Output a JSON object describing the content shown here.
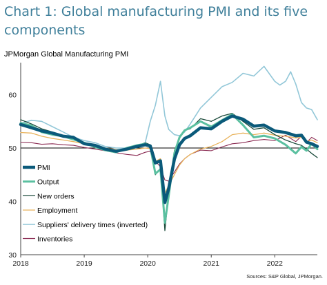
{
  "title": "Chart 1: Global manufacturing PMI and its five components",
  "subtitle": "JPMorgan Global Manufacturing PMI",
  "source": "Sources: S&P Global, JPMorgan.",
  "chart_data": {
    "type": "line",
    "xlim": [
      2018.0,
      2022.67
    ],
    "ylim": [
      30,
      66
    ],
    "y_ticks": [
      30,
      40,
      50,
      60
    ],
    "x_ticks": [
      {
        "value": 2018,
        "label": "2018"
      },
      {
        "value": 2019,
        "label": "2019"
      },
      {
        "value": 2020,
        "label": "2020"
      },
      {
        "value": 2021,
        "label": "2021"
      },
      {
        "value": 2022,
        "label": "2022"
      }
    ],
    "reference_line": 50,
    "grid": false,
    "legend_position": "bottom-left",
    "series": [
      {
        "name": "PMI",
        "color": "#0b5a7a",
        "width": 4.5,
        "points": [
          [
            2018.0,
            54.4
          ],
          [
            2018.17,
            53.8
          ],
          [
            2018.33,
            53.2
          ],
          [
            2018.5,
            52.8
          ],
          [
            2018.67,
            52.2
          ],
          [
            2018.83,
            52.0
          ],
          [
            2019.0,
            50.8
          ],
          [
            2019.17,
            50.5
          ],
          [
            2019.33,
            49.8
          ],
          [
            2019.5,
            49.4
          ],
          [
            2019.67,
            49.8
          ],
          [
            2019.83,
            50.3
          ],
          [
            2019.96,
            50.6
          ],
          [
            2020.04,
            50.4
          ],
          [
            2020.12,
            47.2
          ],
          [
            2020.2,
            47.6
          ],
          [
            2020.27,
            39.8
          ],
          [
            2020.33,
            42.4
          ],
          [
            2020.42,
            47.9
          ],
          [
            2020.5,
            50.6
          ],
          [
            2020.58,
            51.8
          ],
          [
            2020.67,
            52.3
          ],
          [
            2020.83,
            53.8
          ],
          [
            2021.0,
            53.6
          ],
          [
            2021.17,
            55.0
          ],
          [
            2021.33,
            56.0
          ],
          [
            2021.5,
            55.4
          ],
          [
            2021.67,
            54.1
          ],
          [
            2021.83,
            54.3
          ],
          [
            2022.0,
            53.2
          ],
          [
            2022.17,
            52.9
          ],
          [
            2022.33,
            52.3
          ],
          [
            2022.42,
            52.4
          ],
          [
            2022.5,
            51.1
          ],
          [
            2022.58,
            50.8
          ],
          [
            2022.67,
            50.3
          ]
        ]
      },
      {
        "name": "Output",
        "color": "#5bc0a0",
        "width": 3,
        "points": [
          [
            2018.0,
            54.7
          ],
          [
            2018.17,
            54.2
          ],
          [
            2018.33,
            53.0
          ],
          [
            2018.5,
            52.5
          ],
          [
            2018.67,
            52.2
          ],
          [
            2018.83,
            51.6
          ],
          [
            2019.0,
            51.0
          ],
          [
            2019.17,
            50.2
          ],
          [
            2019.33,
            49.6
          ],
          [
            2019.5,
            49.2
          ],
          [
            2019.67,
            50.0
          ],
          [
            2019.83,
            50.5
          ],
          [
            2019.96,
            50.8
          ],
          [
            2020.04,
            50.3
          ],
          [
            2020.12,
            45.2
          ],
          [
            2020.2,
            46.0
          ],
          [
            2020.27,
            36.0
          ],
          [
            2020.33,
            41.0
          ],
          [
            2020.42,
            49.0
          ],
          [
            2020.5,
            52.0
          ],
          [
            2020.58,
            53.3
          ],
          [
            2020.67,
            53.8
          ],
          [
            2020.83,
            55.0
          ],
          [
            2021.0,
            54.0
          ],
          [
            2021.17,
            55.2
          ],
          [
            2021.33,
            56.3
          ],
          [
            2021.5,
            54.3
          ],
          [
            2021.67,
            52.0
          ],
          [
            2021.83,
            52.3
          ],
          [
            2022.0,
            51.8
          ],
          [
            2022.17,
            50.6
          ],
          [
            2022.33,
            49.0
          ],
          [
            2022.42,
            50.2
          ],
          [
            2022.5,
            49.5
          ],
          [
            2022.58,
            50.8
          ],
          [
            2022.67,
            49.8
          ]
        ]
      },
      {
        "name": "New orders",
        "color": "#1a4a3a",
        "width": 1.3,
        "points": [
          [
            2018.0,
            55.3
          ],
          [
            2018.17,
            54.5
          ],
          [
            2018.33,
            53.6
          ],
          [
            2018.5,
            53.0
          ],
          [
            2018.67,
            52.3
          ],
          [
            2018.83,
            51.6
          ],
          [
            2019.0,
            50.9
          ],
          [
            2019.17,
            50.3
          ],
          [
            2019.33,
            49.7
          ],
          [
            2019.5,
            49.5
          ],
          [
            2019.67,
            50.0
          ],
          [
            2019.83,
            50.4
          ],
          [
            2019.96,
            51.0
          ],
          [
            2020.04,
            50.6
          ],
          [
            2020.12,
            45.0
          ],
          [
            2020.2,
            46.2
          ],
          [
            2020.27,
            34.5
          ],
          [
            2020.33,
            41.5
          ],
          [
            2020.42,
            49.5
          ],
          [
            2020.5,
            52.0
          ],
          [
            2020.58,
            53.3
          ],
          [
            2020.67,
            53.6
          ],
          [
            2020.83,
            55.5
          ],
          [
            2021.0,
            55.0
          ],
          [
            2021.17,
            56.0
          ],
          [
            2021.33,
            56.5
          ],
          [
            2021.5,
            55.0
          ],
          [
            2021.67,
            53.5
          ],
          [
            2021.83,
            53.8
          ],
          [
            2022.0,
            52.5
          ],
          [
            2022.17,
            51.5
          ],
          [
            2022.33,
            50.8
          ],
          [
            2022.42,
            50.5
          ],
          [
            2022.5,
            49.8
          ],
          [
            2022.58,
            49.0
          ],
          [
            2022.67,
            48.2
          ]
        ]
      },
      {
        "name": "Employment",
        "color": "#e8b25a",
        "width": 1.3,
        "points": [
          [
            2018.0,
            52.9
          ],
          [
            2018.17,
            52.8
          ],
          [
            2018.33,
            52.2
          ],
          [
            2018.5,
            51.8
          ],
          [
            2018.67,
            51.5
          ],
          [
            2018.83,
            51.2
          ],
          [
            2019.0,
            50.8
          ],
          [
            2019.17,
            50.5
          ],
          [
            2019.33,
            50.0
          ],
          [
            2019.5,
            49.7
          ],
          [
            2019.67,
            49.6
          ],
          [
            2019.83,
            49.8
          ],
          [
            2019.96,
            50.0
          ],
          [
            2020.04,
            49.9
          ],
          [
            2020.12,
            47.5
          ],
          [
            2020.2,
            48.0
          ],
          [
            2020.27,
            41.5
          ],
          [
            2020.33,
            43.0
          ],
          [
            2020.42,
            45.0
          ],
          [
            2020.5,
            46.8
          ],
          [
            2020.58,
            48.0
          ],
          [
            2020.67,
            48.8
          ],
          [
            2020.83,
            49.8
          ],
          [
            2021.0,
            50.3
          ],
          [
            2021.17,
            51.2
          ],
          [
            2021.33,
            52.5
          ],
          [
            2021.5,
            52.8
          ],
          [
            2021.67,
            52.5
          ],
          [
            2021.83,
            52.8
          ],
          [
            2022.0,
            52.4
          ],
          [
            2022.17,
            52.2
          ],
          [
            2022.33,
            51.9
          ],
          [
            2022.42,
            52.0
          ],
          [
            2022.5,
            51.2
          ],
          [
            2022.58,
            51.5
          ],
          [
            2022.67,
            51.0
          ]
        ]
      },
      {
        "name": "Suppliers' delivery times (inverted)",
        "color": "#92c7d8",
        "width": 1.6,
        "points": [
          [
            2018.0,
            54.6
          ],
          [
            2018.17,
            55.2
          ],
          [
            2018.33,
            55.0
          ],
          [
            2018.5,
            54.0
          ],
          [
            2018.67,
            53.0
          ],
          [
            2018.83,
            52.0
          ],
          [
            2019.0,
            51.4
          ],
          [
            2019.17,
            51.0
          ],
          [
            2019.33,
            50.3
          ],
          [
            2019.5,
            50.0
          ],
          [
            2019.67,
            50.0
          ],
          [
            2019.83,
            50.2
          ],
          [
            2019.96,
            51.0
          ],
          [
            2020.04,
            55.0
          ],
          [
            2020.12,
            58.0
          ],
          [
            2020.2,
            62.5
          ],
          [
            2020.27,
            56.0
          ],
          [
            2020.33,
            53.5
          ],
          [
            2020.42,
            52.5
          ],
          [
            2020.5,
            52.3
          ],
          [
            2020.58,
            53.0
          ],
          [
            2020.67,
            54.5
          ],
          [
            2020.83,
            57.5
          ],
          [
            2021.0,
            59.5
          ],
          [
            2021.17,
            61.5
          ],
          [
            2021.33,
            62.3
          ],
          [
            2021.5,
            64.0
          ],
          [
            2021.67,
            63.5
          ],
          [
            2021.83,
            65.3
          ],
          [
            2022.0,
            62.5
          ],
          [
            2022.08,
            61.8
          ],
          [
            2022.17,
            62.5
          ],
          [
            2022.25,
            64.3
          ],
          [
            2022.33,
            62.0
          ],
          [
            2022.42,
            58.5
          ],
          [
            2022.5,
            57.5
          ],
          [
            2022.58,
            57.2
          ],
          [
            2022.67,
            55.3
          ]
        ]
      },
      {
        "name": "Inventories",
        "color": "#8a2a52",
        "width": 1.1,
        "points": [
          [
            2018.0,
            51.1
          ],
          [
            2018.17,
            51.0
          ],
          [
            2018.33,
            50.7
          ],
          [
            2018.5,
            50.8
          ],
          [
            2018.67,
            50.6
          ],
          [
            2018.83,
            50.5
          ],
          [
            2019.0,
            50.1
          ],
          [
            2019.17,
            49.8
          ],
          [
            2019.33,
            49.5
          ],
          [
            2019.5,
            49.1
          ],
          [
            2019.67,
            48.8
          ],
          [
            2019.83,
            48.6
          ],
          [
            2019.96,
            49.2
          ],
          [
            2020.04,
            49.4
          ],
          [
            2020.12,
            47.5
          ],
          [
            2020.2,
            46.5
          ],
          [
            2020.27,
            44.0
          ],
          [
            2020.33,
            43.8
          ],
          [
            2020.42,
            45.5
          ],
          [
            2020.5,
            47.0
          ],
          [
            2020.58,
            48.0
          ],
          [
            2020.67,
            48.8
          ],
          [
            2020.83,
            49.6
          ],
          [
            2021.0,
            49.5
          ],
          [
            2021.17,
            50.2
          ],
          [
            2021.33,
            50.8
          ],
          [
            2021.5,
            51.0
          ],
          [
            2021.67,
            51.4
          ],
          [
            2021.83,
            51.6
          ],
          [
            2022.0,
            51.4
          ],
          [
            2022.17,
            52.4
          ],
          [
            2022.33,
            51.2
          ],
          [
            2022.42,
            52.2
          ],
          [
            2022.5,
            51.0
          ],
          [
            2022.58,
            52.0
          ],
          [
            2022.67,
            51.4
          ]
        ]
      }
    ]
  }
}
